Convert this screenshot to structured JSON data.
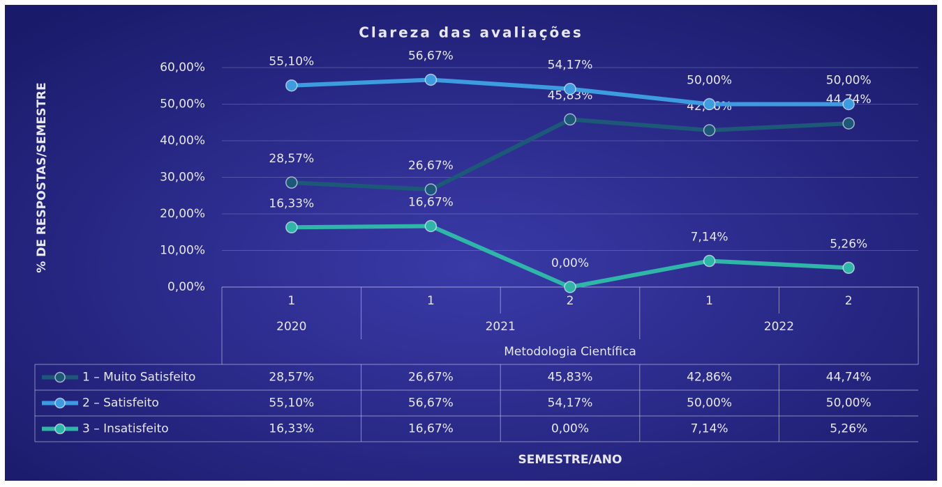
{
  "chart_data": {
    "type": "line",
    "title": "Clareza das avaliações",
    "y_label": "% DE RESPOSTAS/SEMESTRE",
    "x_label": "SEMESTRE/ANO",
    "categories": [
      "1",
      "1",
      "2",
      "1",
      "2"
    ],
    "category_groups": [
      {
        "name": "2020",
        "count": 1
      },
      {
        "name": "2021",
        "count": 2
      },
      {
        "name": "2022",
        "count": 2
      }
    ],
    "category_super_group": "Metodologia Científica",
    "series": [
      {
        "name": "1 – Muito Satisfeito",
        "color": "#1d5878",
        "values": [
          28.57,
          26.67,
          45.83,
          42.86,
          44.74
        ],
        "value_labels": [
          "28,57%",
          "26,67%",
          "45,83%",
          "42,86%",
          "44,74%"
        ]
      },
      {
        "name": "2 – Satisfeito",
        "color": "#3d9be0",
        "values": [
          55.1,
          56.67,
          54.17,
          50.0,
          50.0
        ],
        "value_labels": [
          "55,10%",
          "56,67%",
          "54,17%",
          "50,00%",
          "50,00%"
        ]
      },
      {
        "name": "3 – Insatisfeito",
        "color": "#2fb6a8",
        "values": [
          16.33,
          16.67,
          0.0,
          7.14,
          5.26
        ],
        "value_labels": [
          "16,33%",
          "16,67%",
          "0,00%",
          "7,14%",
          "5,26%"
        ]
      }
    ],
    "ylim": [
      0,
      60
    ],
    "yticks": [
      {
        "value": 0,
        "label": "0,00%"
      },
      {
        "value": 10,
        "label": "10,00%"
      },
      {
        "value": 20,
        "label": "20,00%"
      },
      {
        "value": 30,
        "label": "30,00%"
      },
      {
        "value": 40,
        "label": "40,00%"
      },
      {
        "value": 50,
        "label": "50,00%"
      },
      {
        "value": 60,
        "label": "60,00%"
      }
    ],
    "grid": true,
    "data_table": true
  }
}
